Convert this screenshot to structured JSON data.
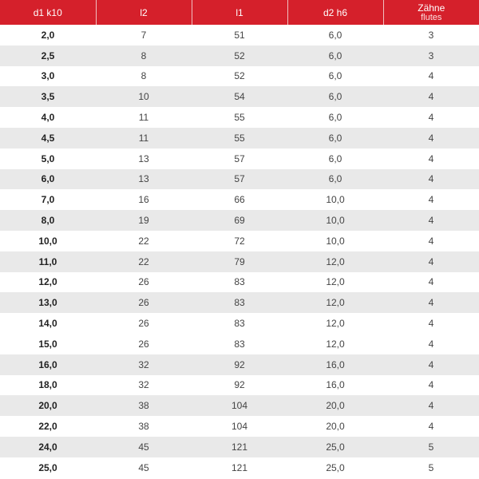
{
  "colors": {
    "header_bg": "#d5202b",
    "stripe": "#e9e9e9"
  },
  "headers": [
    {
      "label": "d1 k10",
      "sub": ""
    },
    {
      "label": "l2",
      "sub": ""
    },
    {
      "label": "l1",
      "sub": ""
    },
    {
      "label": "d2 h6",
      "sub": ""
    },
    {
      "label": "Zähne",
      "sub": "flutes"
    }
  ],
  "rows": [
    {
      "cells": [
        "2,0",
        "7",
        "51",
        "6,0",
        "3"
      ],
      "shaded": false
    },
    {
      "cells": [
        "2,5",
        "8",
        "52",
        "6,0",
        "3"
      ],
      "shaded": true
    },
    {
      "cells": [
        "3,0",
        "8",
        "52",
        "6,0",
        "4"
      ],
      "shaded": false
    },
    {
      "cells": [
        "3,5",
        "10",
        "54",
        "6,0",
        "4"
      ],
      "shaded": true
    },
    {
      "cells": [
        "4,0",
        "11",
        "55",
        "6,0",
        "4"
      ],
      "shaded": false
    },
    {
      "cells": [
        "4,5",
        "11",
        "55",
        "6,0",
        "4"
      ],
      "shaded": true
    },
    {
      "cells": [
        "5,0",
        "13",
        "57",
        "6,0",
        "4"
      ],
      "shaded": false
    },
    {
      "cells": [
        "6,0",
        "13",
        "57",
        "6,0",
        "4"
      ],
      "shaded": true
    },
    {
      "cells": [
        "7,0",
        "16",
        "66",
        "10,0",
        "4"
      ],
      "shaded": false
    },
    {
      "cells": [
        "8,0",
        "19",
        "69",
        "10,0",
        "4"
      ],
      "shaded": true
    },
    {
      "cells": [
        "10,0",
        "22",
        "72",
        "10,0",
        "4"
      ],
      "shaded": false
    },
    {
      "cells": [
        "11,0",
        "22",
        "79",
        "12,0",
        "4"
      ],
      "shaded": true
    },
    {
      "cells": [
        "12,0",
        "26",
        "83",
        "12,0",
        "4"
      ],
      "shaded": false
    },
    {
      "cells": [
        "13,0",
        "26",
        "83",
        "12,0",
        "4"
      ],
      "shaded": true
    },
    {
      "cells": [
        "14,0",
        "26",
        "83",
        "12,0",
        "4"
      ],
      "shaded": false
    },
    {
      "cells": [
        "15,0",
        "26",
        "83",
        "12,0",
        "4"
      ],
      "shaded": false
    },
    {
      "cells": [
        "16,0",
        "32",
        "92",
        "16,0",
        "4"
      ],
      "shaded": true
    },
    {
      "cells": [
        "18,0",
        "32",
        "92",
        "16,0",
        "4"
      ],
      "shaded": false
    },
    {
      "cells": [
        "20,0",
        "38",
        "104",
        "20,0",
        "4"
      ],
      "shaded": true
    },
    {
      "cells": [
        "22,0",
        "38",
        "104",
        "20,0",
        "4"
      ],
      "shaded": false
    },
    {
      "cells": [
        "24,0",
        "45",
        "121",
        "25,0",
        "5"
      ],
      "shaded": true
    },
    {
      "cells": [
        "25,0",
        "45",
        "121",
        "25,0",
        "5"
      ],
      "shaded": false
    }
  ]
}
